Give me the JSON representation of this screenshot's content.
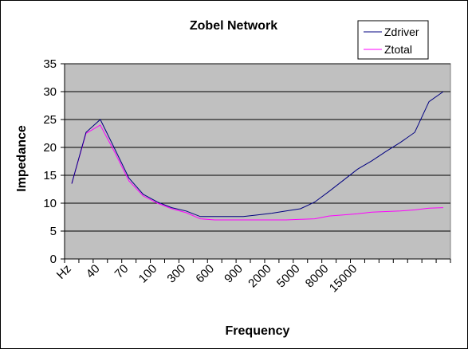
{
  "chart_data": {
    "type": "line",
    "title": "Zobel Network",
    "xlabel": "Frequency",
    "ylabel": "Impedance",
    "ylim": [
      0,
      35
    ],
    "yticks": [
      0,
      5,
      10,
      15,
      20,
      25,
      30,
      35
    ],
    "grid": "horizontal",
    "legend_position": "top-right",
    "x_tick_labels": [
      "Hz",
      "40",
      "70",
      "100",
      "300",
      "600",
      "900",
      "2000",
      "5000",
      "8000",
      "15000"
    ],
    "series": [
      {
        "name": "Zdriver",
        "color": "#000080",
        "values": [
          13.5,
          22.7,
          25.0,
          19.8,
          14.5,
          11.6,
          10.2,
          9.2,
          8.6,
          7.6,
          7.6,
          7.6,
          7.6,
          7.9,
          8.2,
          8.6,
          9.0,
          10.2,
          12.1,
          14.1,
          16.1,
          17.6,
          19.3,
          20.9,
          22.7,
          28.2,
          30.0
        ]
      },
      {
        "name": "Ztotal",
        "color": "#ff00ff",
        "values": [
          13.5,
          22.5,
          24.0,
          19.2,
          14.0,
          11.3,
          10.0,
          9.0,
          8.3,
          7.2,
          7.0,
          7.0,
          7.0,
          7.0,
          7.0,
          7.0,
          7.1,
          7.2,
          7.7,
          7.9,
          8.1,
          8.4,
          8.5,
          8.6,
          8.8,
          9.1,
          9.2
        ]
      }
    ]
  }
}
